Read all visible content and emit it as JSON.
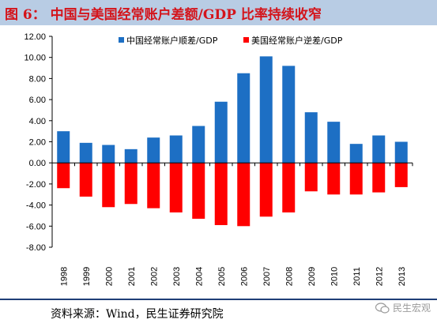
{
  "figure": {
    "title": "图 6： 中国与美国经常账户差额/GDP 比率持续收窄",
    "source": "资料来源：Wind，民生证券研究院",
    "watermark": "民生宏观",
    "watermark_icon": "wechat-icon"
  },
  "colors": {
    "china": "#1d6fc4",
    "us": "#ff0000",
    "title": "#d4141b",
    "title_bg": "#b8cce4",
    "rule": "#1f3f77"
  },
  "chart_data": {
    "type": "bar",
    "categories": [
      "1998",
      "1999",
      "2000",
      "2001",
      "2002",
      "2003",
      "2004",
      "2005",
      "2006",
      "2007",
      "2008",
      "2009",
      "2010",
      "2011",
      "2012",
      "2013"
    ],
    "series": [
      {
        "name": "中国经常账户顺差/GDP",
        "values": [
          3.0,
          1.9,
          1.7,
          1.3,
          2.4,
          2.6,
          3.5,
          5.8,
          8.5,
          10.1,
          9.2,
          4.8,
          3.9,
          1.8,
          2.6,
          2.0
        ]
      },
      {
        "name": "美国经常账户逆差/GDP",
        "values": [
          -2.4,
          -3.2,
          -4.2,
          -3.9,
          -4.3,
          -4.7,
          -5.3,
          -5.9,
          -6.0,
          -5.1,
          -4.7,
          -2.7,
          -3.0,
          -3.0,
          -2.8,
          -2.3
        ]
      }
    ],
    "yticks": [
      "12.00",
      "10.00",
      "8.00",
      "6.00",
      "4.00",
      "2.00",
      "0.00",
      "-2.00",
      "-4.00",
      "-6.00",
      "-8.00"
    ],
    "ylim": [
      -8,
      12
    ],
    "stacked_at_zero": true,
    "legend_position": "top",
    "grid": false
  }
}
